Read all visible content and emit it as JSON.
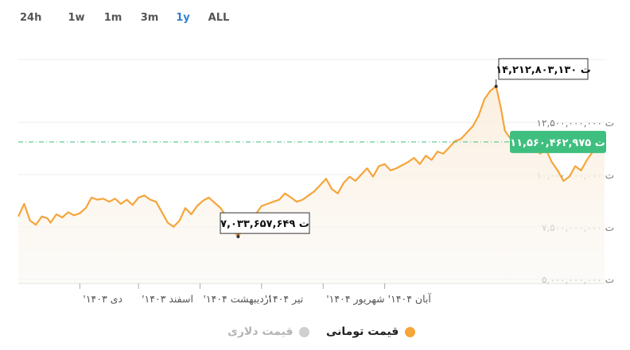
{
  "range_tabs": [
    {
      "label": "24h",
      "active": false
    },
    {
      "label": "1w",
      "active": false
    },
    {
      "label": "1m",
      "active": false
    },
    {
      "label": "3m",
      "active": false
    },
    {
      "label": "1y",
      "active": true
    },
    {
      "label": "ALL",
      "active": false
    }
  ],
  "colors": {
    "line": "#f5a53a",
    "fill": "#fbf3ea",
    "current_badge": "#3fbf7f",
    "current_line": "#3fbf7f",
    "active_tab": "#2f7fcf",
    "legend_disabled": "#cfcfcf"
  },
  "legend": [
    {
      "label": "قیمت تومانی",
      "color": "#f5a53a",
      "enabled": true
    },
    {
      "label": "قیمت دلاری",
      "color": "#cfcfcf",
      "enabled": false
    }
  ],
  "chart_data": {
    "type": "area",
    "series": [
      {
        "name": "قیمت تومانی",
        "unit": "ت"
      }
    ],
    "y_ticks": [
      {
        "value": 5000000000,
        "label": "۵,۰۰۰,۰۰۰,۰۰۰ ت"
      },
      {
        "value": 7500000000,
        "label": "۷,۵۰۰,۰۰۰,۰۰۰ ت"
      },
      {
        "value": 10000000000,
        "label": "۱۰,۰۰۰,۰۰۰,۰۰۰ ت"
      },
      {
        "value": 12500000000,
        "label": "۱۲,۵۰۰,۰۰۰,۰۰۰ ت"
      }
    ],
    "ylim": [
      4800000000,
      15500000000
    ],
    "x_ticks": [
      {
        "t": 0.105,
        "label": "دی ۱۴۰۳'"
      },
      {
        "t": 0.205,
        "label": "اسفند ۱۴۰۳'"
      },
      {
        "t": 0.31,
        "label": "اردیبهشت ۱۴۰۴'"
      },
      {
        "t": 0.415,
        "label": "تیر ۱۴۰۴'"
      },
      {
        "t": 0.52,
        "label": "شهریور ۱۴۰۴'"
      },
      {
        "t": 0.625,
        "label": "آبان ۱۴۰۴'"
      }
    ],
    "points": [
      [
        0.0,
        8000000000
      ],
      [
        0.01,
        8600000000
      ],
      [
        0.02,
        7800000000
      ],
      [
        0.03,
        7600000000
      ],
      [
        0.04,
        8000000000
      ],
      [
        0.05,
        7900000000
      ],
      [
        0.055,
        7700000000
      ],
      [
        0.065,
        8100000000
      ],
      [
        0.075,
        7950000000
      ],
      [
        0.085,
        8200000000
      ],
      [
        0.095,
        8050000000
      ],
      [
        0.105,
        8150000000
      ],
      [
        0.115,
        8400000000
      ],
      [
        0.125,
        8900000000
      ],
      [
        0.135,
        8800000000
      ],
      [
        0.145,
        8850000000
      ],
      [
        0.155,
        8700000000
      ],
      [
        0.165,
        8850000000
      ],
      [
        0.175,
        8600000000
      ],
      [
        0.185,
        8800000000
      ],
      [
        0.195,
        8550000000
      ],
      [
        0.205,
        8900000000
      ],
      [
        0.215,
        9000000000
      ],
      [
        0.225,
        8800000000
      ],
      [
        0.235,
        8700000000
      ],
      [
        0.245,
        8200000000
      ],
      [
        0.255,
        7700000000
      ],
      [
        0.265,
        7500000000
      ],
      [
        0.275,
        7800000000
      ],
      [
        0.285,
        8400000000
      ],
      [
        0.295,
        8100000000
      ],
      [
        0.305,
        8500000000
      ],
      [
        0.315,
        8750000000
      ],
      [
        0.325,
        8900000000
      ],
      [
        0.335,
        8650000000
      ],
      [
        0.345,
        8400000000
      ],
      [
        0.355,
        8000000000
      ],
      [
        0.365,
        7400000000
      ],
      [
        0.375,
        7033657649
      ],
      [
        0.385,
        7500000000
      ],
      [
        0.395,
        7800000000
      ],
      [
        0.405,
        8100000000
      ],
      [
        0.415,
        8500000000
      ],
      [
        0.425,
        8600000000
      ],
      [
        0.435,
        8700000000
      ],
      [
        0.445,
        8800000000
      ],
      [
        0.455,
        9100000000
      ],
      [
        0.465,
        8900000000
      ],
      [
        0.475,
        8700000000
      ],
      [
        0.485,
        8800000000
      ],
      [
        0.495,
        9000000000
      ],
      [
        0.505,
        9200000000
      ],
      [
        0.515,
        9500000000
      ],
      [
        0.525,
        9800000000
      ],
      [
        0.535,
        9300000000
      ],
      [
        0.545,
        9100000000
      ],
      [
        0.555,
        9600000000
      ],
      [
        0.565,
        9900000000
      ],
      [
        0.575,
        9700000000
      ],
      [
        0.585,
        10000000000
      ],
      [
        0.595,
        10300000000
      ],
      [
        0.605,
        9900000000
      ],
      [
        0.615,
        10400000000
      ],
      [
        0.625,
        10500000000
      ],
      [
        0.635,
        10200000000
      ],
      [
        0.645,
        10300000000
      ],
      [
        0.655,
        10450000000
      ],
      [
        0.665,
        10600000000
      ],
      [
        0.675,
        10800000000
      ],
      [
        0.685,
        10500000000
      ],
      [
        0.695,
        10900000000
      ],
      [
        0.705,
        10700000000
      ],
      [
        0.715,
        11100000000
      ],
      [
        0.725,
        11000000000
      ],
      [
        0.735,
        11300000000
      ],
      [
        0.745,
        11600000000
      ],
      [
        0.755,
        11700000000
      ],
      [
        0.765,
        12000000000
      ],
      [
        0.775,
        12300000000
      ],
      [
        0.785,
        12800000000
      ],
      [
        0.795,
        13600000000
      ],
      [
        0.805,
        14000000000
      ],
      [
        0.815,
        14212803130
      ],
      [
        0.823,
        13200000000
      ],
      [
        0.83,
        12100000000
      ],
      [
        0.84,
        11700000000
      ],
      [
        0.85,
        11400000000
      ],
      [
        0.86,
        11900000000
      ],
      [
        0.87,
        11600000000
      ],
      [
        0.88,
        11300000000
      ],
      [
        0.89,
        11000000000
      ],
      [
        0.9,
        11200000000
      ],
      [
        0.91,
        10600000000
      ],
      [
        0.92,
        10200000000
      ],
      [
        0.93,
        9700000000
      ],
      [
        0.94,
        9900000000
      ],
      [
        0.95,
        10400000000
      ],
      [
        0.96,
        10200000000
      ],
      [
        0.97,
        10700000000
      ],
      [
        0.98,
        11100000000
      ],
      [
        0.99,
        11300000000
      ],
      [
        1.0,
        11560462975
      ]
    ],
    "annotations": [
      {
        "kind": "max",
        "t": 0.815,
        "value": 14212803130,
        "label": "۱۴,۲۱۲,۸۰۳,۱۳۰ ت"
      },
      {
        "kind": "min",
        "t": 0.375,
        "value": 7033657649,
        "label": "۷,۰۳۳,۶۵۷,۶۴۹ ت"
      }
    ],
    "current": {
      "value": 11560462975,
      "label": "۱۱,۵۶۰,۴۶۲,۹۷۵ ت"
    }
  }
}
